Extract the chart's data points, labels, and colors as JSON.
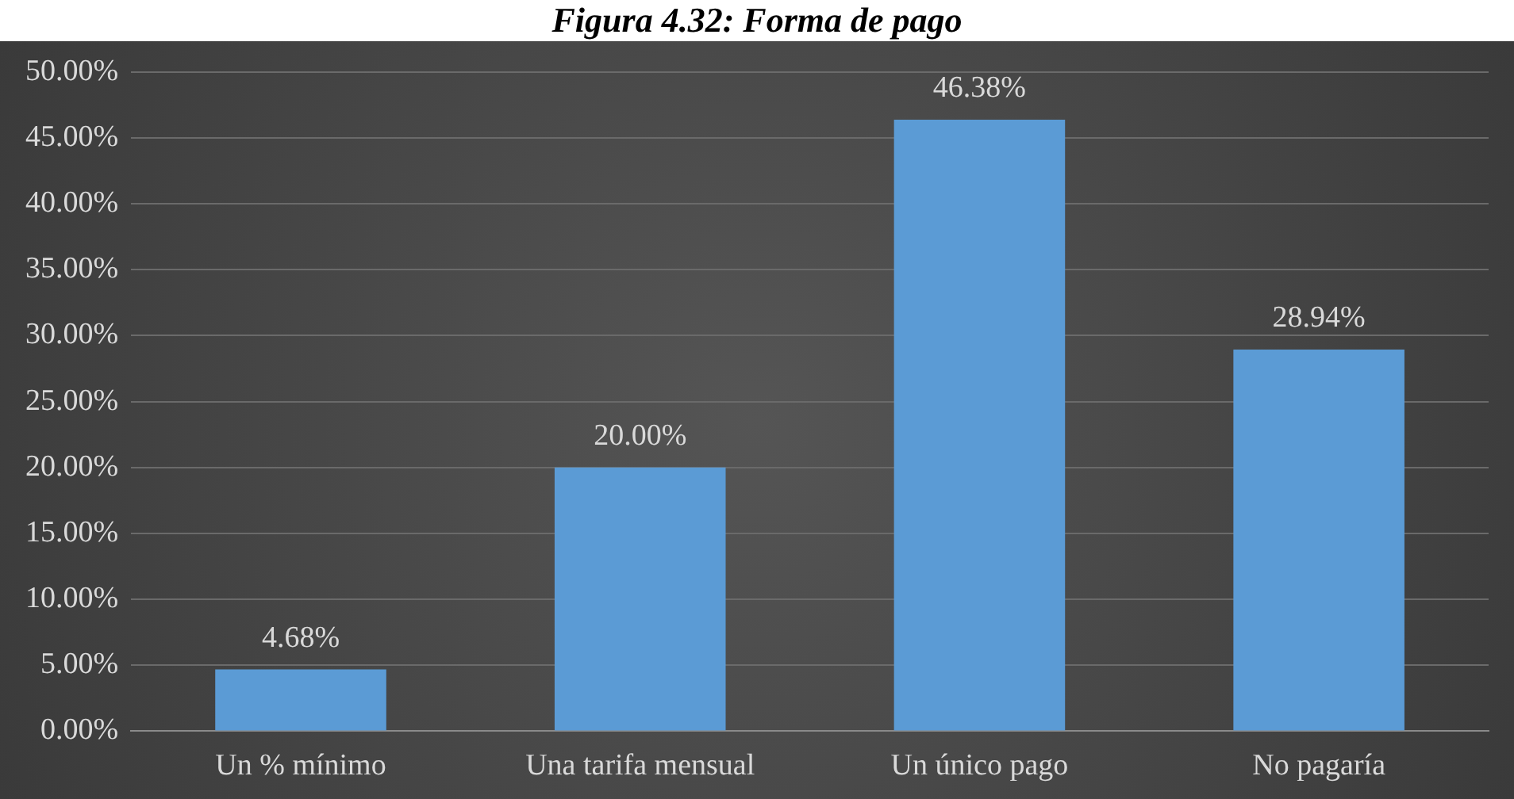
{
  "chart_data": {
    "type": "bar",
    "title": "Figura 4.32: Forma de pago",
    "categories": [
      "Un % mínimo",
      "Una tarifa mensual",
      "Un único pago",
      "No pagaría"
    ],
    "values": [
      4.68,
      20.0,
      46.38,
      28.94
    ],
    "color": "#5b9bd5",
    "value_labels": [
      "4.68%",
      "20.00%",
      "46.38%",
      "28.94%"
    ],
    "ylim": [
      0,
      50
    ],
    "yticks": [
      {
        "value": 0,
        "label": "0.00%"
      },
      {
        "value": 5,
        "label": "5.00%"
      },
      {
        "value": 10,
        "label": "10.00%"
      },
      {
        "value": 15,
        "label": "15.00%"
      },
      {
        "value": 20,
        "label": "20.00%"
      },
      {
        "value": 25,
        "label": "25.00%"
      },
      {
        "value": 30,
        "label": "30.00%"
      },
      {
        "value": 35,
        "label": "35.00%"
      },
      {
        "value": 40,
        "label": "40.00%"
      },
      {
        "value": 45,
        "label": "45.00%"
      },
      {
        "value": 50,
        "label": "50.00%"
      }
    ],
    "grid": "y",
    "legend": false
  }
}
